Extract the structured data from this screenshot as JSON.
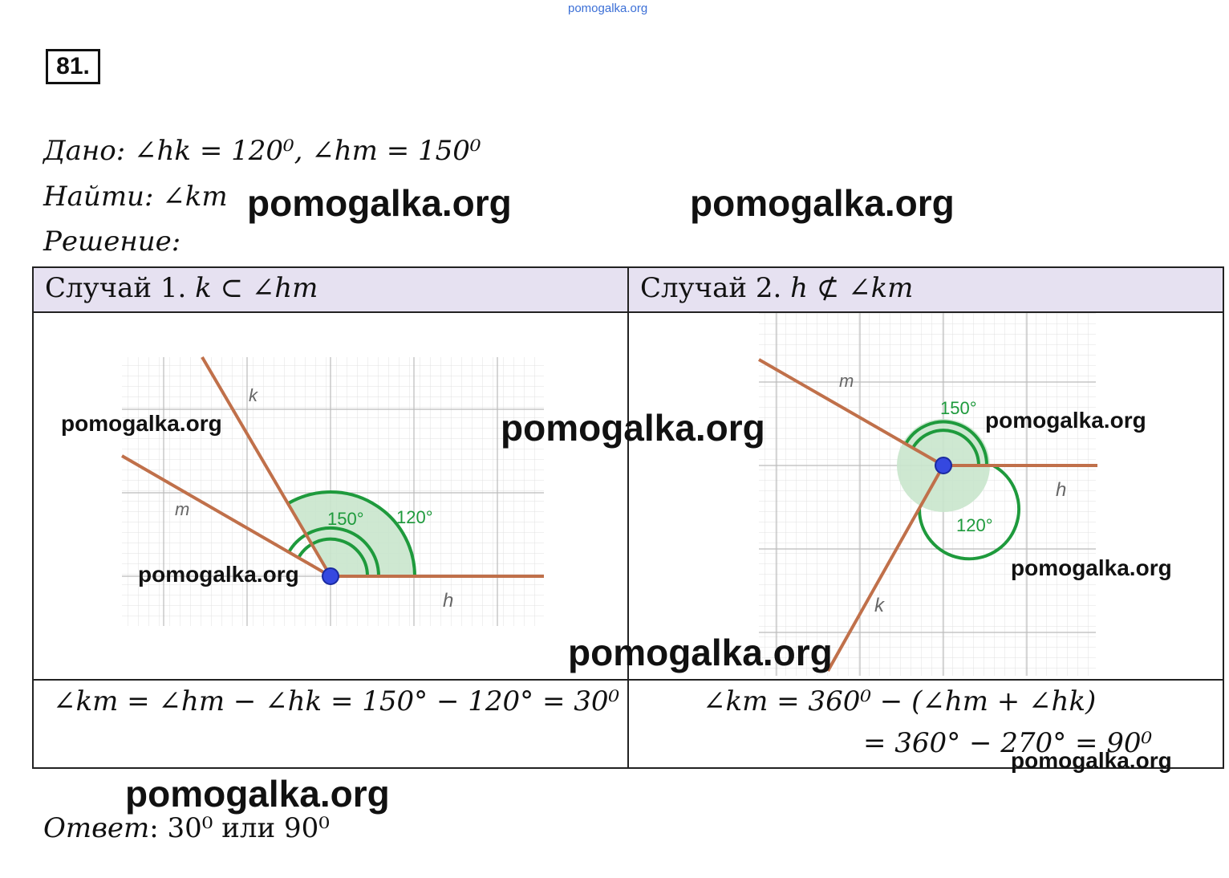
{
  "site_top": "pomogalka.org",
  "problem_number": "81.",
  "given": {
    "label": "Дано",
    "text": ": ∠hk = 120⁰,  ∠hm = 150⁰"
  },
  "find": {
    "label": "Найти",
    "text": ": ∠km"
  },
  "solution_label": "Решение:",
  "case1": {
    "header_prefix": "Случай 1. ",
    "header_math": "k ⊂ ∠hm",
    "figure": {
      "ray_labels": [
        "k",
        "m",
        "h"
      ],
      "arc_labels": [
        "150°",
        "120°"
      ]
    },
    "formula": "∠km = ∠hm − ∠hk = 150° − 120° = 30⁰"
  },
  "case2": {
    "header_prefix": "Случай 2. ",
    "header_math": "h ⊄ ∠km",
    "figure": {
      "ray_labels": [
        "m",
        "h",
        "k"
      ],
      "arc_labels": [
        "150°",
        "120°"
      ]
    },
    "formula_line1": "∠km = 360⁰ − (∠hm + ∠hk)",
    "formula_line2": "= 360° − 270° = 90⁰"
  },
  "answer": {
    "label": "Ответ",
    "text": ": 30⁰ или 90⁰"
  },
  "watermark": "pomogalka.org",
  "colors": {
    "ray": "#c0704a",
    "arc": "#1e9a3c",
    "arc_fill": "#c9e6cc",
    "point": "#3548e0",
    "header_bg": "#e6e1f1"
  }
}
